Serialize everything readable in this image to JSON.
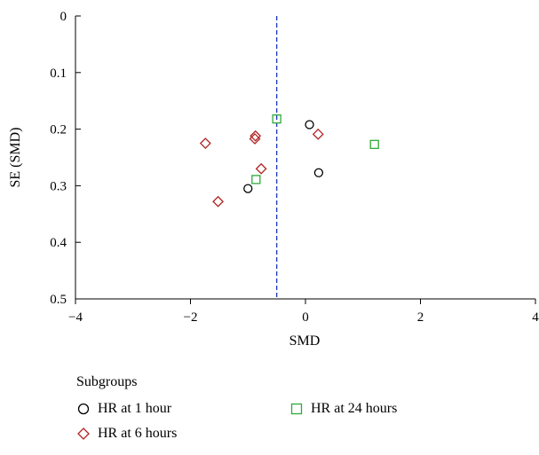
{
  "chart_data": {
    "type": "scatter",
    "title": "",
    "xlabel": "SMD",
    "ylabel": "SE (SMD)",
    "xlim": [
      -4,
      4
    ],
    "ylim": [
      0,
      0.5
    ],
    "y_inverted": true,
    "x_ticks": [
      "−4",
      "−2",
      "0",
      "2",
      "4"
    ],
    "x_tick_values": [
      -4,
      -2,
      0,
      2,
      4
    ],
    "y_ticks": [
      "0",
      "0.1",
      "0.2",
      "0.3",
      "0.4",
      "0.5"
    ],
    "y_tick_values": [
      0,
      0.1,
      0.2,
      0.3,
      0.4,
      0.5
    ],
    "reference_line": {
      "x": -0.5,
      "style": "dashed",
      "color": "#1f3fbf"
    },
    "grid": false,
    "legend_title": "Subgroups",
    "legend_position": "bottom",
    "series": [
      {
        "name": "HR at 1 hour",
        "marker": "circle",
        "color": "#000000",
        "points": [
          {
            "x": 0.07,
            "y": 0.192
          },
          {
            "x": 0.23,
            "y": 0.277
          },
          {
            "x": -1.0,
            "y": 0.305
          }
        ]
      },
      {
        "name": "HR at 6 hours",
        "marker": "diamond",
        "color": "#b22222",
        "points": [
          {
            "x": -1.74,
            "y": 0.225
          },
          {
            "x": -0.87,
            "y": 0.212
          },
          {
            "x": -0.88,
            "y": 0.217
          },
          {
            "x": -0.77,
            "y": 0.27
          },
          {
            "x": -1.52,
            "y": 0.328
          },
          {
            "x": 0.22,
            "y": 0.209
          }
        ]
      },
      {
        "name": "HR at 24 hours",
        "marker": "square",
        "color": "#2eaa3a",
        "points": [
          {
            "x": -0.5,
            "y": 0.182
          },
          {
            "x": 1.2,
            "y": 0.227
          },
          {
            "x": -0.86,
            "y": 0.289
          }
        ]
      }
    ]
  }
}
